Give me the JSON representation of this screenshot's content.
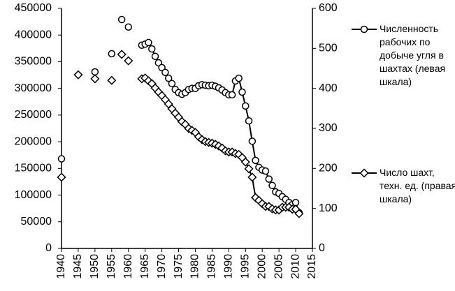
{
  "chart_data": {
    "type": "line",
    "series": [
      {
        "name": "Численность рабочих по добыче угля в шахтах (левая шкала)",
        "color": "#000000",
        "marker": "circle",
        "axis": "y",
        "x": [
          1940,
          1950,
          1955,
          1958,
          1960,
          1964,
          1965,
          1966,
          1967,
          1968,
          1969,
          1970,
          1971,
          1972,
          1973,
          1974,
          1975,
          1976,
          1977,
          1978,
          1979,
          1980,
          1981,
          1982,
          1983,
          1984,
          1985,
          1986,
          1987,
          1988,
          1989,
          1990,
          1991,
          1992,
          1993,
          1994,
          1995,
          1996,
          1997,
          1998,
          1999,
          2000,
          2001,
          2002,
          2003,
          2004,
          2005,
          2006,
          2007,
          2008,
          2009,
          2010,
          2011
        ],
        "values": [
          168000,
          331000,
          365000,
          429000,
          415000,
          381000,
          383000,
          386000,
          374000,
          360000,
          348000,
          339000,
          330000,
          319000,
          309000,
          298000,
          292000,
          289000,
          292000,
          298000,
          300000,
          300000,
          305000,
          307000,
          306000,
          305000,
          306000,
          304000,
          301000,
          297000,
          292000,
          288000,
          288000,
          314000,
          319000,
          293000,
          267000,
          239000,
          201000,
          165000,
          152000,
          147000,
          145000,
          130000,
          118000,
          106000,
          103000,
          97000,
          92000,
          86000,
          82000,
          86000,
          67000
        ]
      },
      {
        "name": "Число шахт, техн. ед. (правая шкала)",
        "color": "#000000",
        "marker": "diamond",
        "axis": "y2",
        "x": [
          1940,
          1945,
          1950,
          1955,
          1958,
          1960,
          1964,
          1965,
          1966,
          1967,
          1968,
          1969,
          1970,
          1971,
          1972,
          1973,
          1974,
          1975,
          1976,
          1977,
          1978,
          1979,
          1980,
          1981,
          1982,
          1983,
          1984,
          1985,
          1986,
          1987,
          1988,
          1989,
          1990,
          1991,
          1992,
          1993,
          1994,
          1995,
          1996,
          1997,
          1998,
          1999,
          2000,
          2001,
          2002,
          2003,
          2004,
          2005,
          2006,
          2007,
          2008,
          2009,
          2010,
          2011
        ],
        "values": [
          178,
          434,
          424,
          420,
          485,
          469,
          424,
          426,
          419,
          412,
          401,
          391,
          382,
          372,
          361,
          349,
          338,
          328,
          317,
          310,
          300,
          295,
          290,
          279,
          272,
          267,
          265,
          263,
          260,
          256,
          251,
          244,
          241,
          241,
          237,
          235,
          227,
          216,
          199,
          178,
          127,
          120,
          112,
          105,
          105,
          99,
          96,
          96,
          103,
          103,
          103,
          98,
          98,
          87
        ]
      }
    ],
    "xlim": [
      1940,
      2015
    ],
    "xticks": [
      1940,
      1945,
      1950,
      1955,
      1960,
      1965,
      1970,
      1975,
      1980,
      1985,
      1990,
      1995,
      2000,
      2005,
      2010,
      2015
    ],
    "ylim": [
      0,
      450000
    ],
    "yticks": [
      0,
      50000,
      100000,
      150000,
      200000,
      250000,
      300000,
      350000,
      400000,
      450000
    ],
    "y2lim": [
      0,
      600
    ],
    "y2ticks": [
      0,
      100,
      200,
      300,
      400,
      500,
      600
    ],
    "legend": "right"
  }
}
